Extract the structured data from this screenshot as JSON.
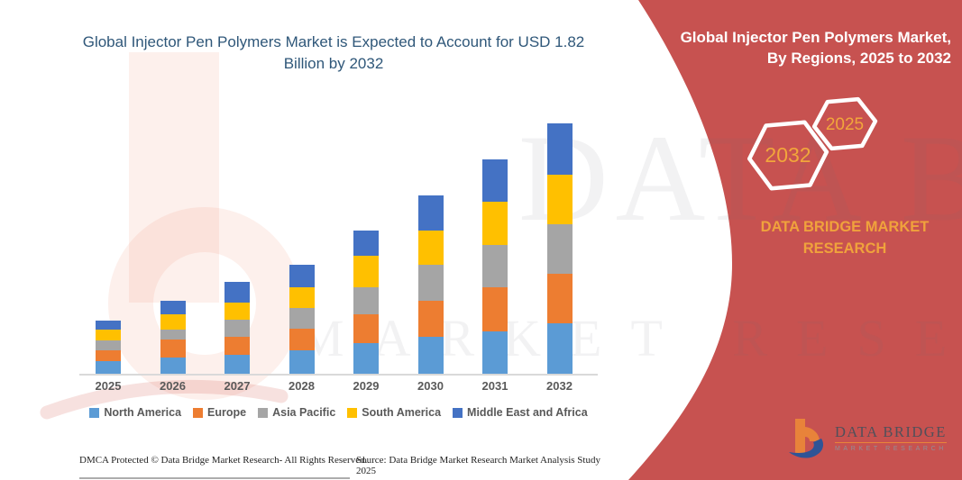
{
  "main": {
    "title": "Global Injector Pen Polymers Market is Expected to Account for USD 1.82 Billion by 2032",
    "footer_left": "DMCA Protected © Data Bridge Market Research-  All Rights Reserved.",
    "footer_right": "Source: Data Bridge Market Research  Market Analysis Study 2025"
  },
  "chart_data": {
    "type": "bar",
    "stacked": true,
    "title": "Global Injector Pen Polymers Market is Expected to Account for USD 1.82 Billion by 2032",
    "unit": "USD Billion",
    "categories": [
      "2025",
      "2026",
      "2027",
      "2028",
      "2029",
      "2030",
      "2031",
      "2032"
    ],
    "series": [
      {
        "name": "North America",
        "color": "#5B9BD5",
        "values": [
          0.09,
          0.12,
          0.14,
          0.17,
          0.22,
          0.27,
          0.31,
          0.37
        ]
      },
      {
        "name": "Europe",
        "color": "#ED7D31",
        "values": [
          0.08,
          0.13,
          0.13,
          0.16,
          0.21,
          0.26,
          0.32,
          0.36
        ]
      },
      {
        "name": "Asia Pacific",
        "color": "#A5A5A5",
        "values": [
          0.07,
          0.07,
          0.12,
          0.15,
          0.2,
          0.26,
          0.31,
          0.36
        ]
      },
      {
        "name": "South America",
        "color": "#FFC000",
        "values": [
          0.08,
          0.11,
          0.13,
          0.15,
          0.23,
          0.25,
          0.31,
          0.36
        ]
      },
      {
        "name": "Middle East and Africa",
        "color": "#4472C4",
        "values": [
          0.07,
          0.1,
          0.15,
          0.16,
          0.18,
          0.26,
          0.31,
          0.37
        ]
      }
    ],
    "totals": [
      0.39,
      0.53,
      0.67,
      0.79,
      1.04,
      1.3,
      1.56,
      1.82
    ],
    "ylim": [
      0,
      1.93
    ],
    "grid": false,
    "y_axis_visible": false,
    "legend_position": "bottom"
  },
  "side_panel": {
    "title": "Global Injector Pen Polymers Market, By Regions, 2025 to 2032",
    "hexagons": [
      {
        "label": "2032"
      },
      {
        "label": "2025"
      }
    ],
    "brand_text": "DATA BRIDGE MARKET RESEARCH",
    "colors": {
      "background": "#C75250",
      "accent_text": "#F2A63B"
    }
  },
  "logo": {
    "name": "DATA BRIDGE",
    "subtitle": "MARKET RESEARCH"
  },
  "watermark": {
    "line1": "DATA BRIDGE",
    "line2": "MARKET RESEARCH"
  }
}
